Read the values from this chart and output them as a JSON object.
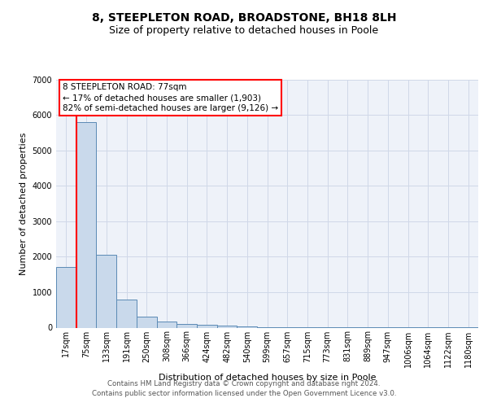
{
  "title": "8, STEEPLETON ROAD, BROADSTONE, BH18 8LH",
  "subtitle": "Size of property relative to detached houses in Poole",
  "xlabel": "Distribution of detached houses by size in Poole",
  "ylabel": "Number of detached properties",
  "categories": [
    "17sqm",
    "75sqm",
    "133sqm",
    "191sqm",
    "250sqm",
    "308sqm",
    "366sqm",
    "424sqm",
    "482sqm",
    "540sqm",
    "599sqm",
    "657sqm",
    "715sqm",
    "773sqm",
    "831sqm",
    "889sqm",
    "947sqm",
    "1006sqm",
    "1064sqm",
    "1122sqm",
    "1180sqm"
  ],
  "values": [
    1700,
    5800,
    2050,
    800,
    320,
    175,
    100,
    70,
    55,
    30,
    20,
    10,
    8,
    5,
    4,
    3,
    2,
    2,
    2,
    2,
    2
  ],
  "bar_color": "#c9d9eb",
  "bar_edge_color": "#5b8ab5",
  "grid_color": "#d0d8e8",
  "background_color": "#eef2f9",
  "annotation_box_text": "8 STEEPLETON ROAD: 77sqm\n← 17% of detached houses are smaller (1,903)\n82% of semi-detached houses are larger (9,126) →",
  "annotation_box_color": "white",
  "annotation_box_edge_color": "red",
  "property_line_color": "red",
  "property_line_bar_index": 1,
  "ylim": [
    0,
    7000
  ],
  "yticks": [
    0,
    1000,
    2000,
    3000,
    4000,
    5000,
    6000,
    7000
  ],
  "title_fontsize": 10,
  "subtitle_fontsize": 9,
  "ylabel_fontsize": 8,
  "xlabel_fontsize": 8,
  "tick_fontsize": 7,
  "footer_line1": "Contains HM Land Registry data © Crown copyright and database right 2024.",
  "footer_line2": "Contains public sector information licensed under the Open Government Licence v3.0."
}
